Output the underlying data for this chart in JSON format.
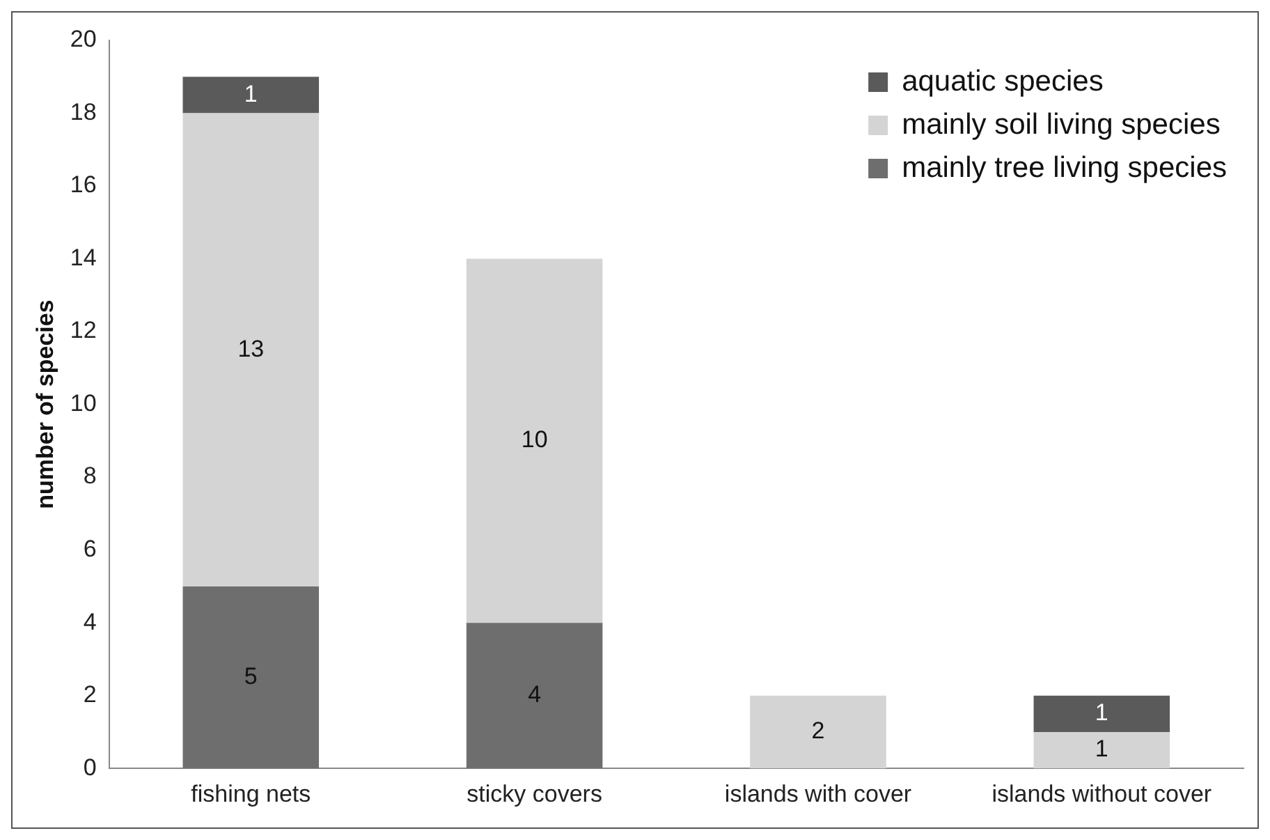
{
  "chart_data": {
    "type": "bar",
    "stacked": true,
    "ylabel": "number of species",
    "categories": [
      "fishing nets",
      "sticky covers",
      "islands with cover",
      "islands without cover"
    ],
    "series": [
      {
        "name": "mainly tree living species",
        "color": "#6e6e6e",
        "values": [
          5,
          4,
          null,
          null
        ]
      },
      {
        "name": "mainly soil living species",
        "color": "#d4d4d4",
        "values": [
          13,
          10,
          2,
          1
        ]
      },
      {
        "name": "aquatic species",
        "color": "#5a5a5a",
        "values": [
          1,
          null,
          null,
          1
        ]
      }
    ],
    "ylim": [
      0,
      20
    ],
    "yticks": [
      0,
      2,
      4,
      6,
      8,
      10,
      12,
      14,
      16,
      18,
      20
    ],
    "grid": false,
    "legend": "top right",
    "data_labels": true
  }
}
